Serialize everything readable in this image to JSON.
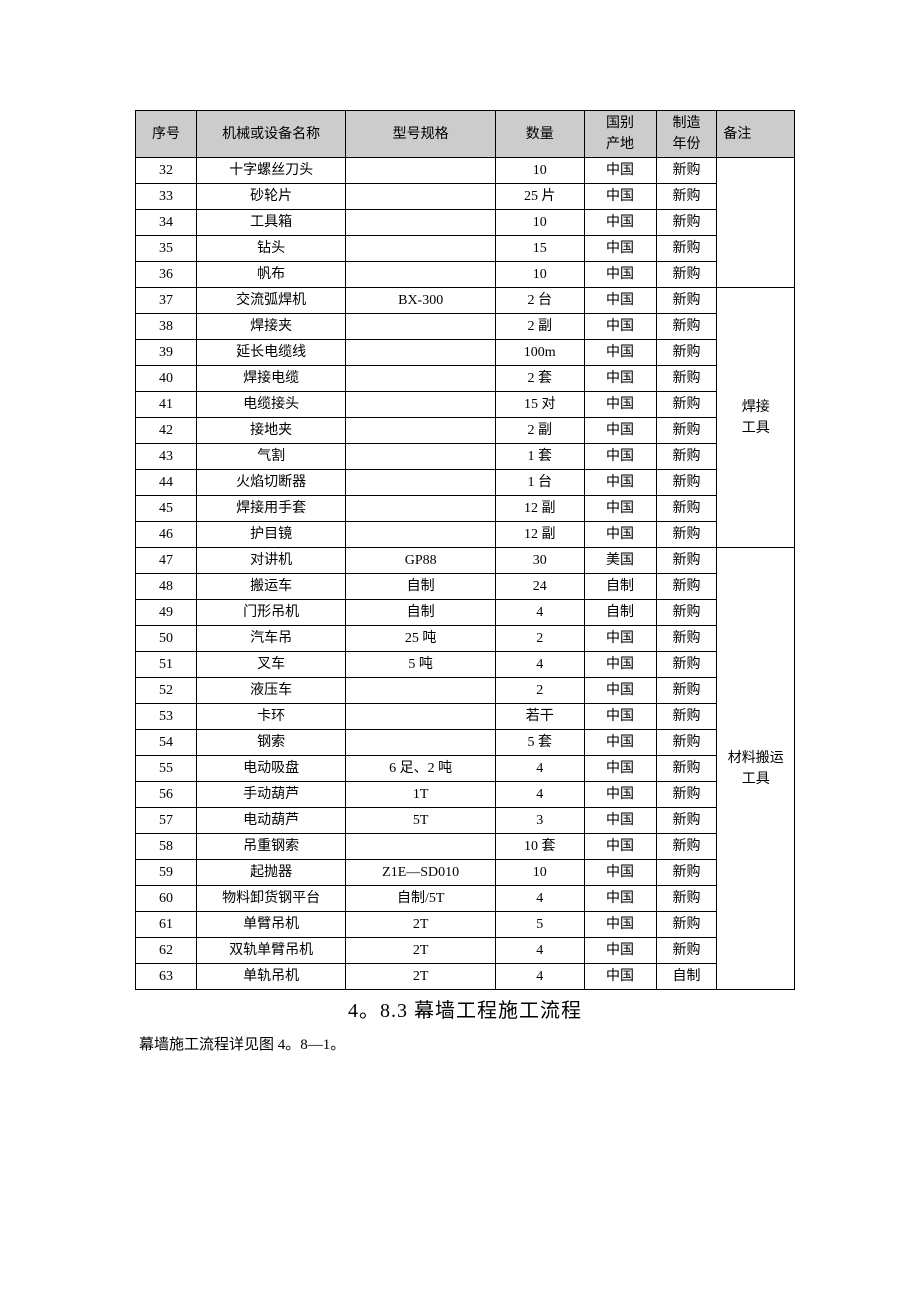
{
  "table": {
    "header_bg": "#cccccc",
    "border_color": "#000000",
    "columns": {
      "seq": "序号",
      "name": "机械或设备名称",
      "spec": "型号规格",
      "qty": "数量",
      "origin_line1": "国别",
      "origin_line2": "产地",
      "year_line1": "制造",
      "year_line2": "年份",
      "note": "备注"
    },
    "groups": [
      {
        "note": "",
        "rows": [
          {
            "seq": "32",
            "name": "十字螺丝刀头",
            "spec": "",
            "qty": "10",
            "origin": "中国",
            "year": "新购"
          },
          {
            "seq": "33",
            "name": "砂轮片",
            "spec": "",
            "qty": "25 片",
            "origin": "中国",
            "year": "新购"
          },
          {
            "seq": "34",
            "name": "工具箱",
            "spec": "",
            "qty": "10",
            "origin": "中国",
            "year": "新购"
          },
          {
            "seq": "35",
            "name": "钻头",
            "spec": "",
            "qty": "15",
            "origin": "中国",
            "year": "新购"
          },
          {
            "seq": "36",
            "name": "帆布",
            "spec": "",
            "qty": "10",
            "origin": "中国",
            "year": "新购"
          }
        ]
      },
      {
        "note": "焊接\n工具",
        "rows": [
          {
            "seq": "37",
            "name": "交流弧焊机",
            "spec": "BX-300",
            "qty": "2 台",
            "origin": "中国",
            "year": "新购"
          },
          {
            "seq": "38",
            "name": "焊接夹",
            "spec": "",
            "qty": "2 副",
            "origin": "中国",
            "year": "新购"
          },
          {
            "seq": "39",
            "name": "延长电缆线",
            "spec": "",
            "qty": "100m",
            "origin": "中国",
            "year": "新购"
          },
          {
            "seq": "40",
            "name": "焊接电缆",
            "spec": "",
            "qty": "2 套",
            "origin": "中国",
            "year": "新购"
          },
          {
            "seq": "41",
            "name": "电缆接头",
            "spec": "",
            "qty": "15 对",
            "origin": "中国",
            "year": "新购"
          },
          {
            "seq": "42",
            "name": "接地夹",
            "spec": "",
            "qty": "2 副",
            "origin": "中国",
            "year": "新购"
          },
          {
            "seq": "43",
            "name": "气割",
            "spec": "",
            "qty": "1 套",
            "origin": "中国",
            "year": "新购"
          },
          {
            "seq": "44",
            "name": "火焰切断器",
            "spec": "",
            "qty": "1 台",
            "origin": "中国",
            "year": "新购"
          },
          {
            "seq": "45",
            "name": "焊接用手套",
            "spec": "",
            "qty": "12 副",
            "origin": "中国",
            "year": "新购"
          },
          {
            "seq": "46",
            "name": "护目镜",
            "spec": "",
            "qty": "12 副",
            "origin": "中国",
            "year": "新购"
          }
        ]
      },
      {
        "note": "材料搬运\n工具",
        "rows": [
          {
            "seq": "47",
            "name": "对讲机",
            "spec": "GP88",
            "qty": "30",
            "origin": "美国",
            "year": "新购"
          },
          {
            "seq": "48",
            "name": "搬运车",
            "spec": "自制",
            "qty": "24",
            "origin": "自制",
            "year": "新购"
          },
          {
            "seq": "49",
            "name": "门形吊机",
            "spec": "自制",
            "qty": "4",
            "origin": "自制",
            "year": "新购"
          },
          {
            "seq": "50",
            "name": "汽车吊",
            "spec": "25 吨",
            "qty": "2",
            "origin": "中国",
            "year": "新购"
          },
          {
            "seq": "51",
            "name": "叉车",
            "spec": "5 吨",
            "qty": "4",
            "origin": "中国",
            "year": "新购"
          },
          {
            "seq": "52",
            "name": "液压车",
            "spec": "",
            "qty": "2",
            "origin": "中国",
            "year": "新购"
          },
          {
            "seq": "53",
            "name": "卡环",
            "spec": "",
            "qty": "若干",
            "origin": "中国",
            "year": "新购"
          },
          {
            "seq": "54",
            "name": "钢索",
            "spec": "",
            "qty": "5 套",
            "origin": "中国",
            "year": "新购"
          },
          {
            "seq": "55",
            "name": "电动吸盘",
            "spec": "6 足、2 吨",
            "qty": "4",
            "origin": "中国",
            "year": "新购"
          },
          {
            "seq": "56",
            "name": "手动葫芦",
            "spec": "1T",
            "qty": "4",
            "origin": "中国",
            "year": "新购"
          },
          {
            "seq": "57",
            "name": "电动葫芦",
            "spec": "5T",
            "qty": "3",
            "origin": "中国",
            "year": "新购"
          },
          {
            "seq": "58",
            "name": "吊重钢索",
            "spec": "",
            "qty": "10 套",
            "origin": "中国",
            "year": "新购"
          },
          {
            "seq": "59",
            "name": "起抛器",
            "spec": "Z1E—SD010",
            "qty": "10",
            "origin": "中国",
            "year": "新购"
          },
          {
            "seq": "60",
            "name": "物料卸货钢平台",
            "spec": "自制/5T",
            "qty": "4",
            "origin": "中国",
            "year": "新购"
          },
          {
            "seq": "61",
            "name": "单臂吊机",
            "spec": "2T",
            "qty": "5",
            "origin": "中国",
            "year": "新购"
          },
          {
            "seq": "62",
            "name": "双轨单臂吊机",
            "spec": "2T",
            "qty": "4",
            "origin": "中国",
            "year": "新购"
          },
          {
            "seq": "63",
            "name": "单轨吊机",
            "spec": "2T",
            "qty": "4",
            "origin": "中国",
            "year": "自制"
          }
        ]
      }
    ]
  },
  "section": {
    "title": "4。8.3  幕墙工程施工流程",
    "title_fontsize": 20,
    "body": "幕墙施工流程详见图 4。8—1。",
    "body_fontsize": 15
  }
}
